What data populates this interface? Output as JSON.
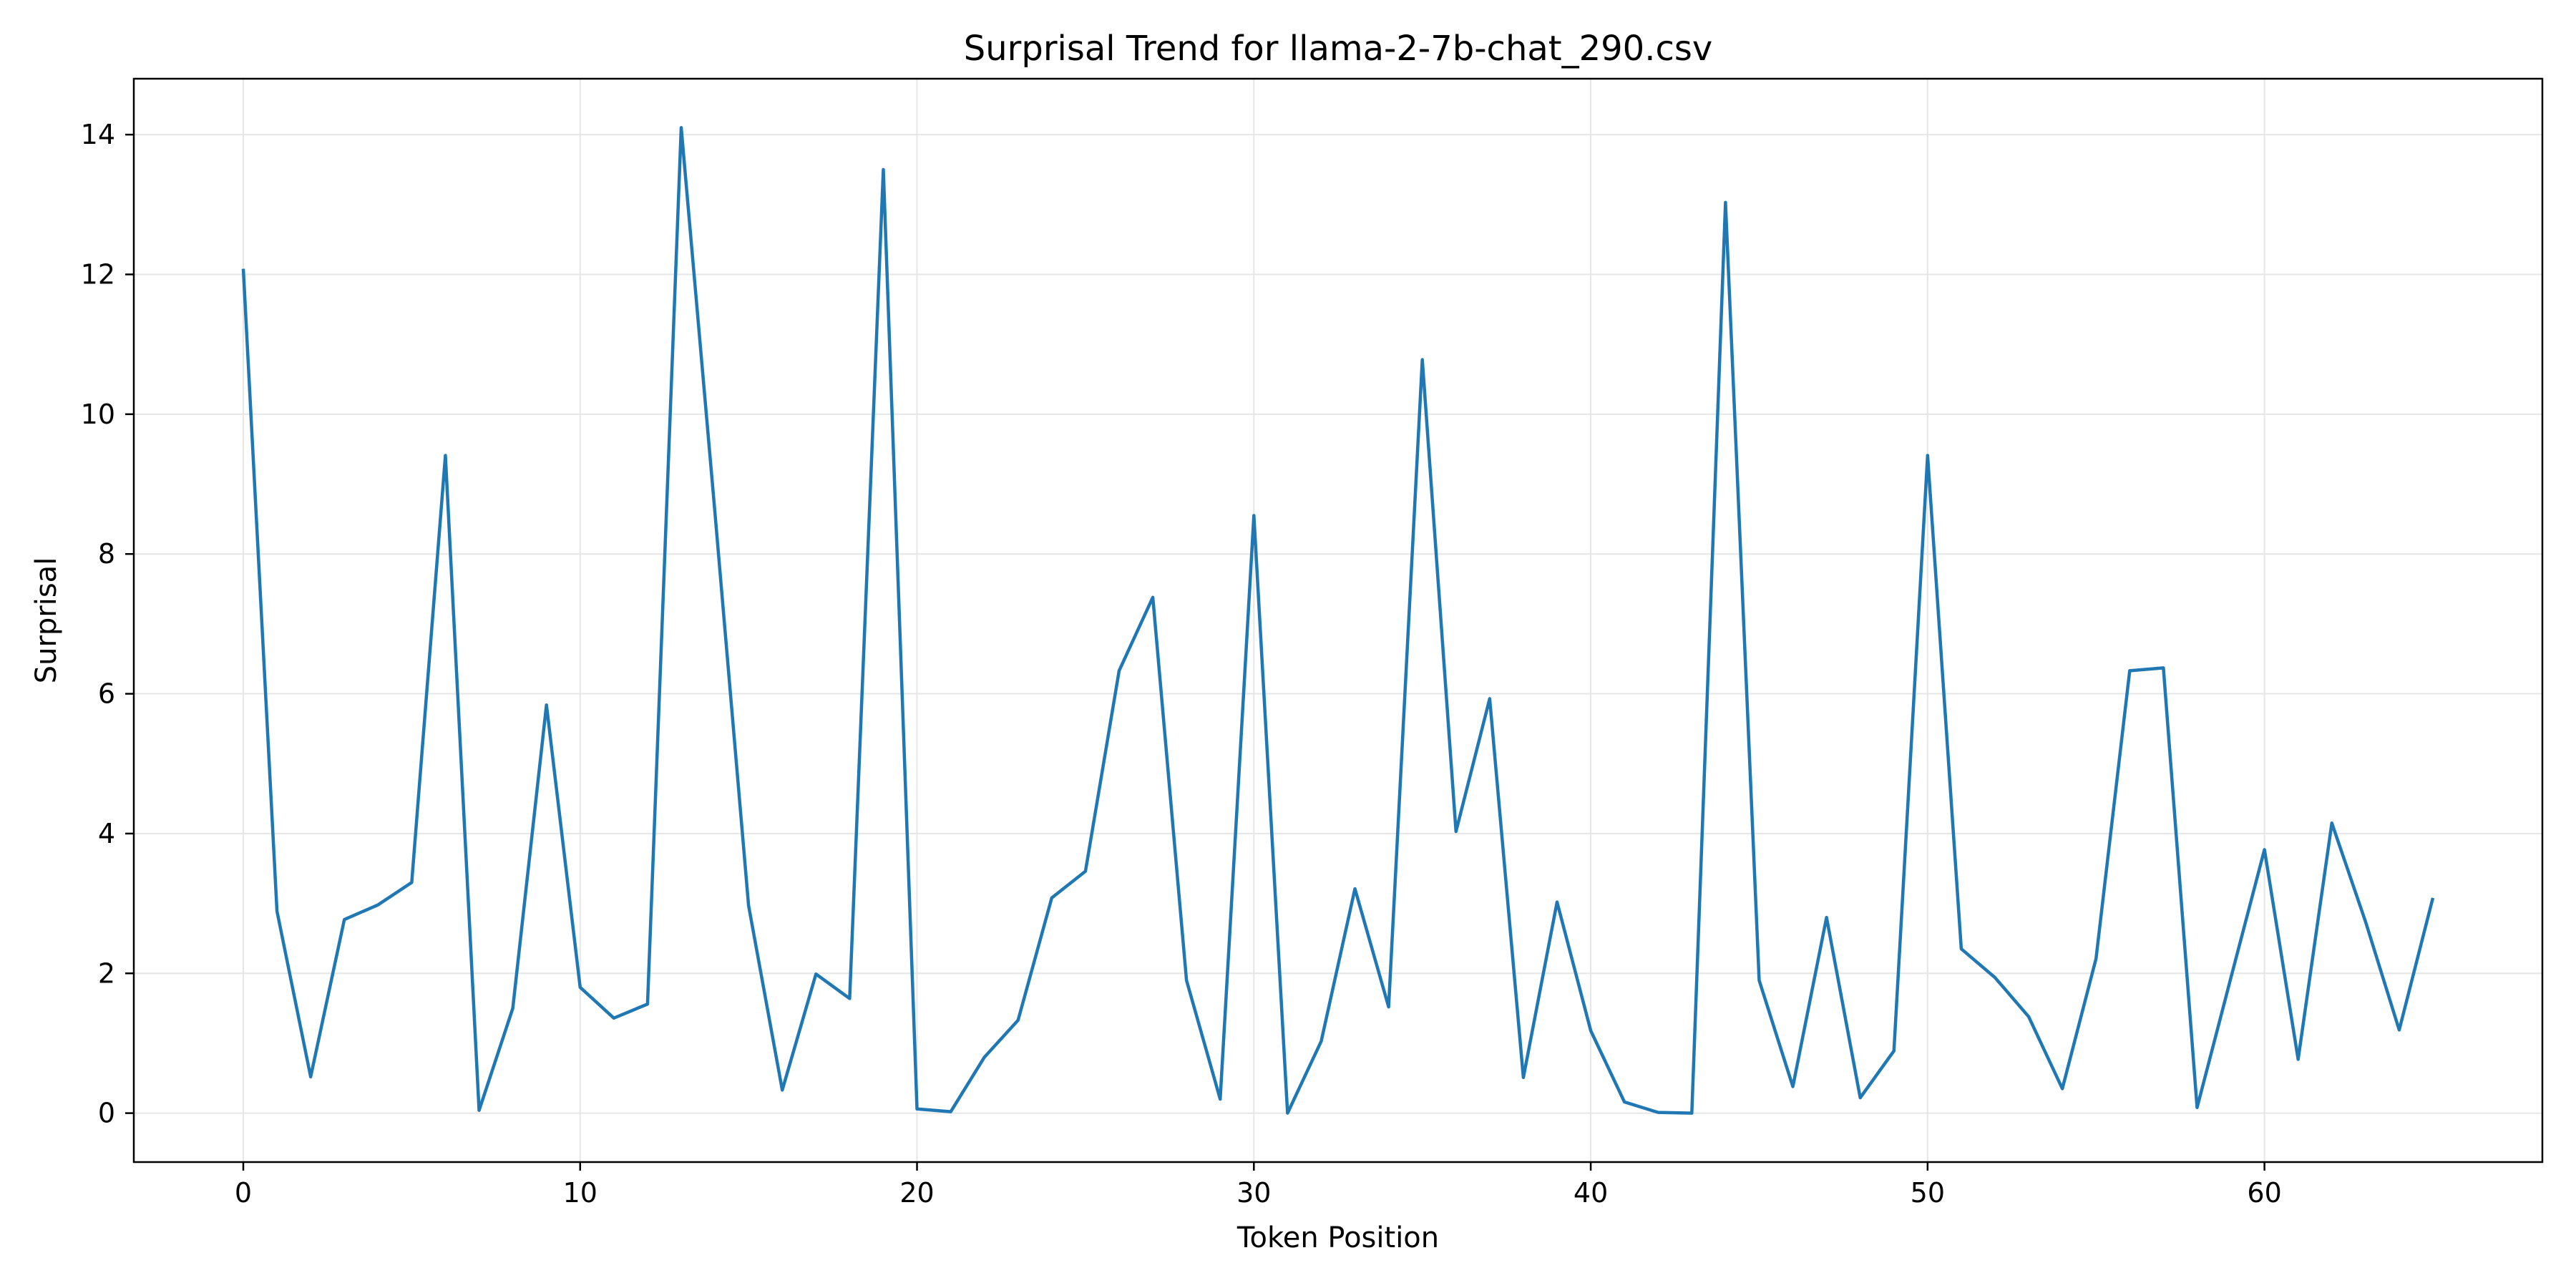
{
  "chart_data": {
    "type": "line",
    "title": "Surprisal Trend for llama-2-7b-chat_290.csv",
    "xlabel": "Token Position",
    "ylabel": "Surprisal",
    "xlim": [
      -3.25,
      68.25
    ],
    "ylim": [
      -0.7,
      14.8
    ],
    "xticks": [
      0,
      10,
      20,
      30,
      40,
      50,
      60
    ],
    "yticks": [
      0,
      2,
      4,
      6,
      8,
      10,
      12,
      14
    ],
    "xtick_labels": [
      "0",
      "10",
      "20",
      "30",
      "40",
      "50",
      "60"
    ],
    "ytick_labels": [
      "0",
      "2",
      "4",
      "6",
      "8",
      "10",
      "12",
      "14"
    ],
    "grid": true,
    "legend": "none",
    "colors": {
      "line": "#1f77b4",
      "grid": "#e6e6e6",
      "axes": "#000000"
    },
    "series": [
      {
        "x": [
          0,
          1,
          2,
          3,
          4,
          5,
          6,
          7,
          8,
          9,
          10,
          11,
          12,
          13,
          14,
          15,
          16,
          17,
          18,
          19,
          20,
          21,
          22,
          23,
          24,
          25,
          26,
          27,
          28,
          29,
          30,
          31,
          32,
          33,
          34,
          35,
          36,
          37,
          38,
          39,
          40,
          41,
          42,
          43,
          44,
          45,
          46,
          47,
          48,
          49,
          50,
          51,
          52,
          53,
          54,
          55,
          56,
          57,
          58,
          59,
          60,
          61,
          62,
          63,
          64,
          65
        ],
        "values": [
          12.08,
          2.89,
          0.52,
          2.77,
          2.98,
          3.3,
          9.41,
          0.04,
          1.5,
          5.84,
          1.8,
          1.36,
          1.56,
          14.1,
          8.6,
          2.97,
          0.33,
          1.99,
          1.64,
          13.5,
          0.06,
          0.02,
          0.8,
          1.33,
          3.08,
          3.46,
          6.33,
          7.38,
          1.9,
          0.2,
          8.55,
          0.0,
          1.03,
          3.21,
          1.52,
          10.78,
          4.03,
          5.93,
          0.51,
          3.02,
          1.18,
          0.16,
          0.01,
          0.0,
          13.03,
          1.9,
          0.38,
          2.8,
          0.22,
          0.89,
          9.41,
          2.35,
          1.94,
          1.38,
          0.35,
          2.21,
          6.33,
          6.37,
          0.08,
          1.93,
          3.77,
          0.77,
          4.15,
          2.74,
          1.19,
          3.08
        ]
      }
    ]
  }
}
